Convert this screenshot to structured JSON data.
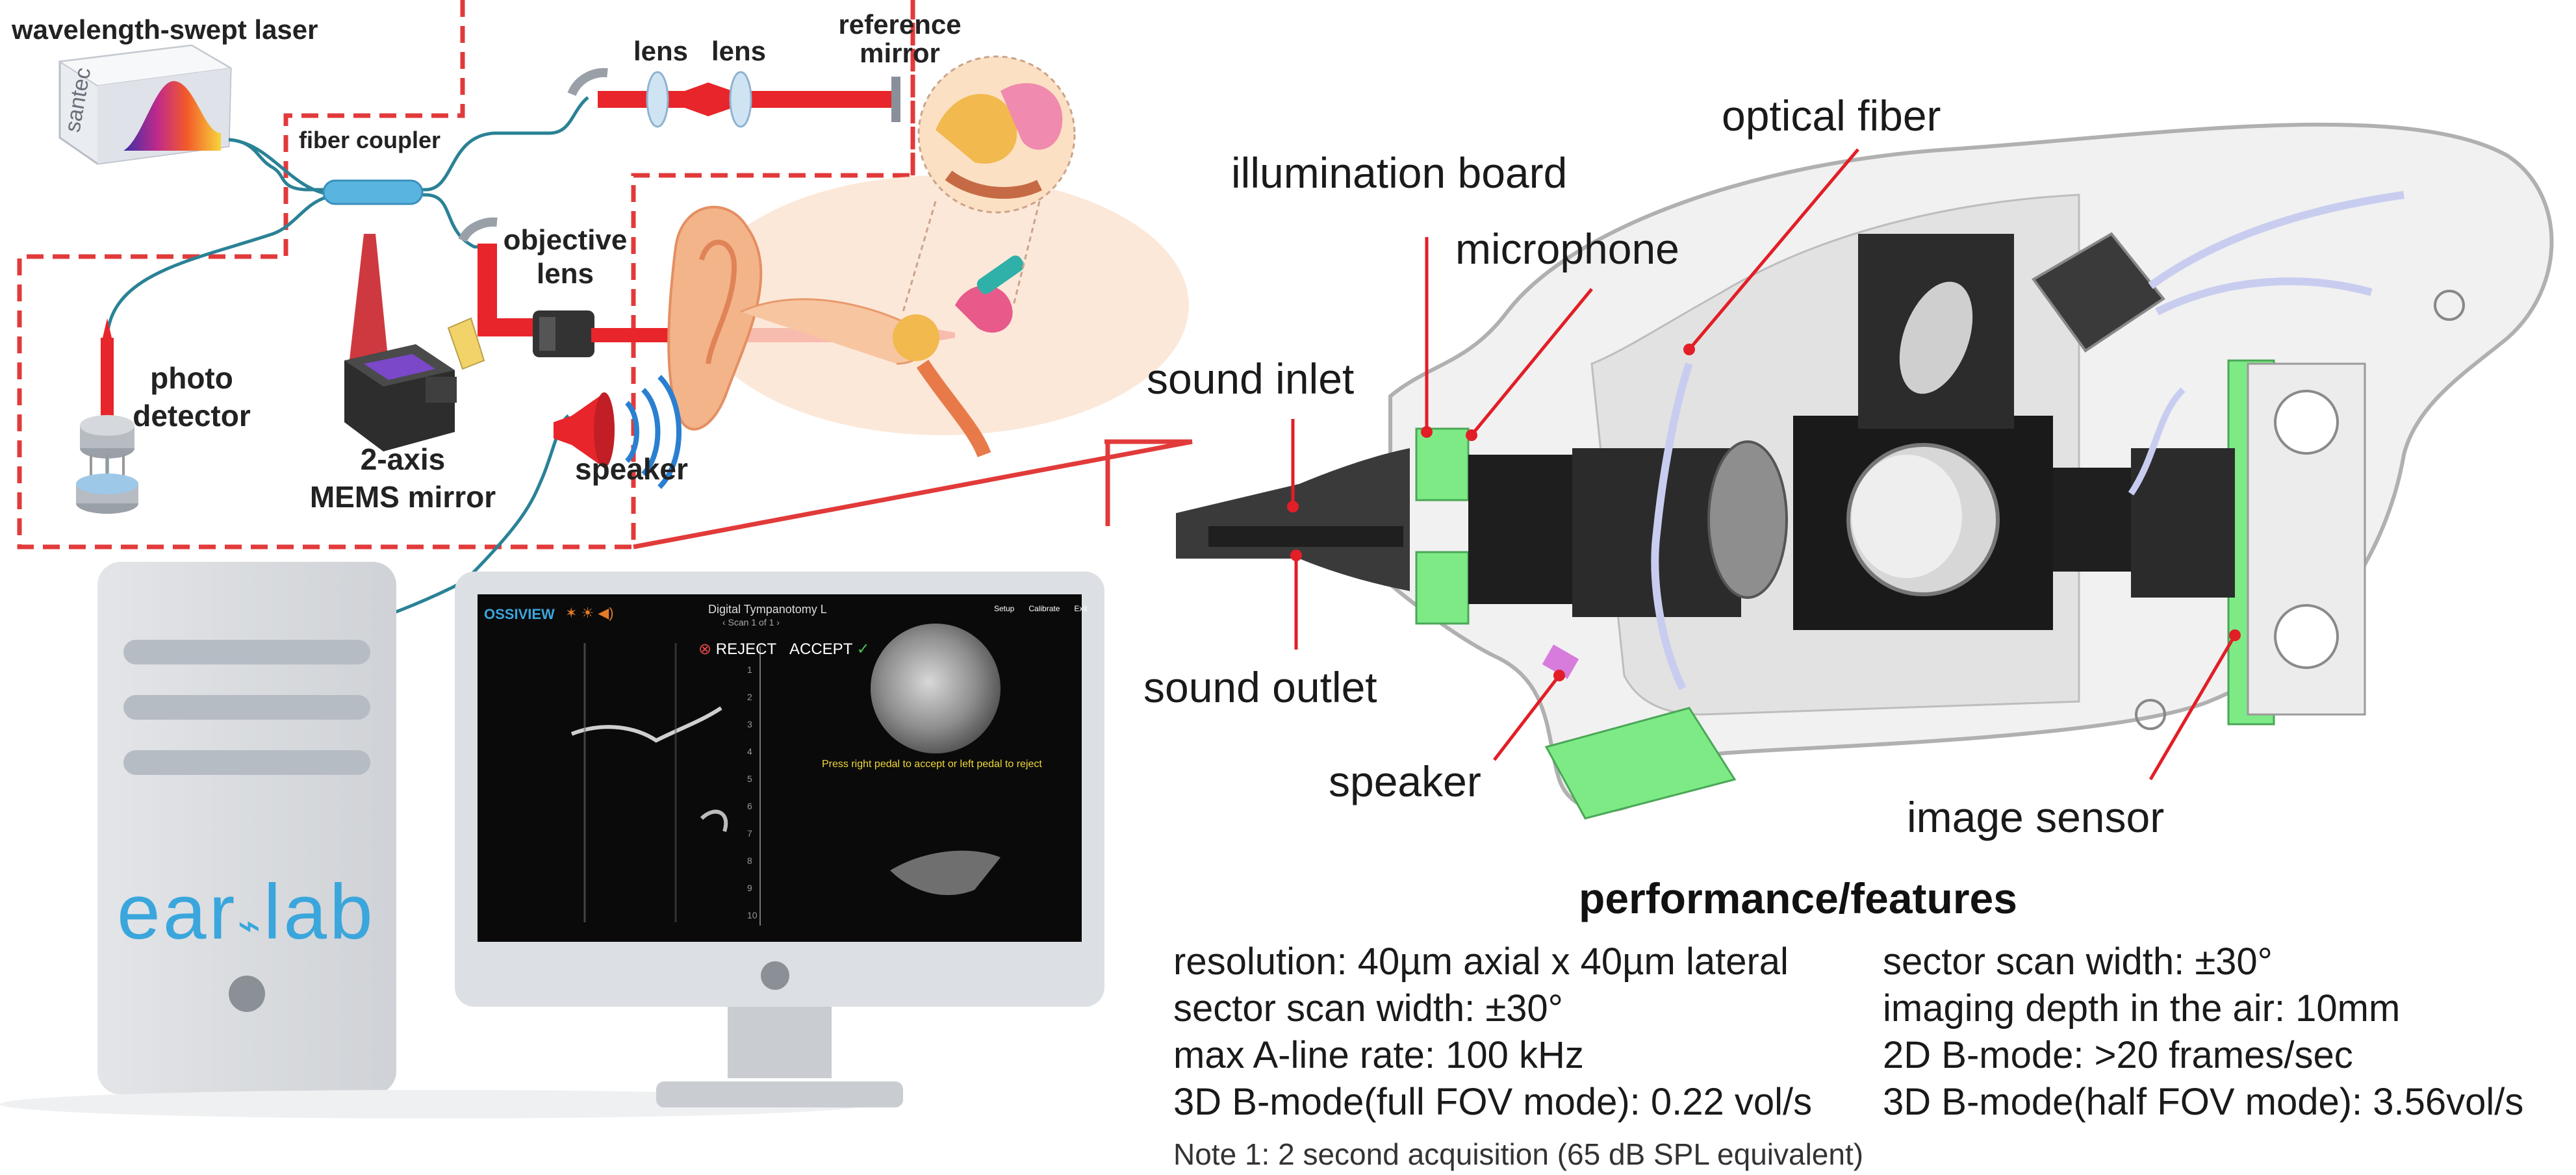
{
  "system_diagram": {
    "laser": "wavelength-swept laser",
    "laser_brand": "santec",
    "fiber_coupler": "fiber coupler",
    "lens_1": "lens",
    "lens_2": "lens",
    "reference_mirror_line1": "reference",
    "reference_mirror_line2": "mirror",
    "objective_lens_line1": "objective",
    "objective_lens_line2": "lens",
    "photodetector_line1": "photo",
    "photodetector_line2": "detector",
    "mems_line1": "2-axis",
    "mems_line2": "MEMS mirror",
    "speaker": "speaker"
  },
  "computer": {
    "logo_left": "ear",
    "logo_right": "lab"
  },
  "monitor": {
    "app_name": "OSSIVIEW",
    "screen_title": "Digital Tympanotomy L",
    "screen_subtitle": "‹  Scan 1 of 1  ›",
    "reject_label": "REJECT",
    "accept_label": "ACCEPT",
    "instruction": "Press right pedal to accept or left pedal to reject",
    "toolbar": [
      "Setup",
      "Calibrate",
      "Exit"
    ],
    "scale_ticks": [
      "1",
      "2",
      "3",
      "4",
      "5",
      "6",
      "7",
      "8",
      "9",
      "10"
    ]
  },
  "probe_labels": {
    "optical_fiber": "optical fiber",
    "illumination_board": "illumination board",
    "microphone": "microphone",
    "sound_inlet": "sound inlet",
    "sound_outlet": "sound outlet",
    "speaker": "speaker",
    "image_sensor": "image sensor"
  },
  "performance": {
    "title": "performance/features",
    "left": [
      "resolution: 40µm axial x 40µm lateral",
      "sector scan width: ±30°",
      "max A-line rate: 100 kHz",
      "3D B-mode(full FOV mode): 0.22 vol/s"
    ],
    "right": [
      "sector scan width: ±30°",
      "imaging depth in the air: 10mm",
      "2D B-mode: >20 frames/sec",
      "3D B-mode(half FOV mode): 3.56vol/s"
    ],
    "note": "Note 1: 2  second acquisition (65 dB SPL equivalent)"
  },
  "colors": {
    "laser_red": "#e8252a",
    "dashed_red": "#e23a3a",
    "fiber_teal": "#2a8296",
    "coupler_blue": "#5ab4e0",
    "pcb_green": "#7dea86",
    "logo_blue": "#3aa6dc"
  }
}
